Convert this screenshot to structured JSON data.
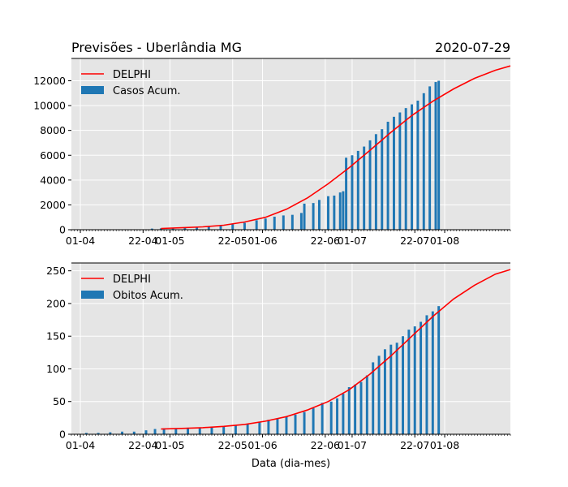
{
  "colors": {
    "bars": "#1f77b4",
    "line": "#ff0000",
    "axes_bg": "#e5e5e5",
    "grid": "#ffffff"
  },
  "chart_data": [
    {
      "type": "bar",
      "title": "Previsões - Uberlândia MG",
      "date_label": "2020-07-29",
      "xlabel": "",
      "ylabel": "",
      "grid": true,
      "legend_position": "top-left",
      "xlim": [
        "2020-03-29",
        "2020-08-23"
      ],
      "ylim": [
        0,
        13800
      ],
      "x_ticks": [
        {
          "date": "2020-04-01",
          "label": "01-04"
        },
        {
          "date": "2020-04-22",
          "label": "22-04"
        },
        {
          "date": "2020-05-01",
          "label": "01-05"
        },
        {
          "date": "2020-05-22",
          "label": "22-05"
        },
        {
          "date": "2020-06-01",
          "label": "01-06"
        },
        {
          "date": "2020-06-22",
          "label": "22-06"
        },
        {
          "date": "2020-07-01",
          "label": "01-07"
        },
        {
          "date": "2020-07-22",
          "label": "22-07"
        },
        {
          "date": "2020-08-01",
          "label": "01-08"
        }
      ],
      "y_ticks": [
        0,
        2000,
        4000,
        6000,
        8000,
        10000,
        12000
      ],
      "series": [
        {
          "name": "Casos Acum.",
          "kind": "bar",
          "points": [
            [
              "2020-04-05",
              5
            ],
            [
              "2020-04-10",
              10
            ],
            [
              "2020-04-15",
              15
            ],
            [
              "2020-04-20",
              20
            ],
            [
              "2020-04-25",
              90
            ],
            [
              "2020-04-28",
              110
            ],
            [
              "2020-05-02",
              120
            ],
            [
              "2020-05-06",
              140
            ],
            [
              "2020-05-10",
              200
            ],
            [
              "2020-05-14",
              260
            ],
            [
              "2020-05-18",
              330
            ],
            [
              "2020-05-22",
              430
            ],
            [
              "2020-05-26",
              560
            ],
            [
              "2020-05-30",
              760
            ],
            [
              "2020-06-02",
              900
            ],
            [
              "2020-06-05",
              1050
            ],
            [
              "2020-06-08",
              1150
            ],
            [
              "2020-06-11",
              1200
            ],
            [
              "2020-06-14",
              1350
            ],
            [
              "2020-06-15",
              2100
            ],
            [
              "2020-06-18",
              2150
            ],
            [
              "2020-06-20",
              2400
            ],
            [
              "2020-06-23",
              2700
            ],
            [
              "2020-06-25",
              2750
            ],
            [
              "2020-06-27",
              3000
            ],
            [
              "2020-06-28",
              3100
            ],
            [
              "2020-06-29",
              5800
            ],
            [
              "2020-07-01",
              6000
            ],
            [
              "2020-07-03",
              6350
            ],
            [
              "2020-07-05",
              6700
            ],
            [
              "2020-07-07",
              7200
            ],
            [
              "2020-07-09",
              7700
            ],
            [
              "2020-07-11",
              8100
            ],
            [
              "2020-07-13",
              8700
            ],
            [
              "2020-07-15",
              9100
            ],
            [
              "2020-07-17",
              9450
            ],
            [
              "2020-07-19",
              9800
            ],
            [
              "2020-07-21",
              10100
            ],
            [
              "2020-07-23",
              10400
            ],
            [
              "2020-07-25",
              11000
            ],
            [
              "2020-07-27",
              11550
            ],
            [
              "2020-07-29",
              11900
            ],
            [
              "2020-07-30",
              12000
            ]
          ]
        },
        {
          "name": "DELPHI",
          "kind": "line",
          "points": [
            [
              "2020-04-28",
              100
            ],
            [
              "2020-05-05",
              160
            ],
            [
              "2020-05-12",
              230
            ],
            [
              "2020-05-19",
              360
            ],
            [
              "2020-05-26",
              620
            ],
            [
              "2020-06-02",
              1000
            ],
            [
              "2020-06-09",
              1650
            ],
            [
              "2020-06-16",
              2550
            ],
            [
              "2020-06-23",
              3700
            ],
            [
              "2020-06-30",
              5000
            ],
            [
              "2020-07-07",
              6400
            ],
            [
              "2020-07-14",
              7850
            ],
            [
              "2020-07-21",
              9200
            ],
            [
              "2020-07-28",
              10350
            ],
            [
              "2020-08-04",
              11350
            ],
            [
              "2020-08-11",
              12200
            ],
            [
              "2020-08-18",
              12850
            ],
            [
              "2020-08-23",
              13200
            ]
          ]
        }
      ]
    },
    {
      "type": "bar",
      "title": "",
      "xlabel": "Data (dia-mes)",
      "ylabel": "",
      "grid": true,
      "legend_position": "top-left",
      "xlim": [
        "2020-03-29",
        "2020-08-23"
      ],
      "ylim": [
        0,
        262
      ],
      "x_ticks": [
        {
          "date": "2020-04-01",
          "label": "01-04"
        },
        {
          "date": "2020-04-22",
          "label": "22-04"
        },
        {
          "date": "2020-05-01",
          "label": "01-05"
        },
        {
          "date": "2020-05-22",
          "label": "22-05"
        },
        {
          "date": "2020-06-01",
          "label": "01-06"
        },
        {
          "date": "2020-06-22",
          "label": "22-06"
        },
        {
          "date": "2020-07-01",
          "label": "01-07"
        },
        {
          "date": "2020-07-22",
          "label": "22-07"
        },
        {
          "date": "2020-08-01",
          "label": "01-08"
        }
      ],
      "y_ticks": [
        0,
        50,
        100,
        150,
        200,
        250
      ],
      "series": [
        {
          "name": "Obitos Acum.",
          "kind": "bar",
          "points": [
            [
              "2020-04-03",
              2
            ],
            [
              "2020-04-07",
              2
            ],
            [
              "2020-04-11",
              3
            ],
            [
              "2020-04-15",
              4
            ],
            [
              "2020-04-19",
              4
            ],
            [
              "2020-04-23",
              6
            ],
            [
              "2020-04-26",
              8
            ],
            [
              "2020-04-29",
              9
            ],
            [
              "2020-05-03",
              9
            ],
            [
              "2020-05-07",
              10
            ],
            [
              "2020-05-11",
              10
            ],
            [
              "2020-05-15",
              11
            ],
            [
              "2020-05-19",
              12
            ],
            [
              "2020-05-23",
              13
            ],
            [
              "2020-05-27",
              15
            ],
            [
              "2020-05-31",
              19
            ],
            [
              "2020-06-03",
              22
            ],
            [
              "2020-06-06",
              24
            ],
            [
              "2020-06-09",
              27
            ],
            [
              "2020-06-12",
              30
            ],
            [
              "2020-06-15",
              34
            ],
            [
              "2020-06-18",
              40
            ],
            [
              "2020-06-21",
              48
            ],
            [
              "2020-06-24",
              50
            ],
            [
              "2020-06-26",
              55
            ],
            [
              "2020-06-28",
              62
            ],
            [
              "2020-06-30",
              72
            ],
            [
              "2020-07-02",
              76
            ],
            [
              "2020-07-04",
              80
            ],
            [
              "2020-07-06",
              90
            ],
            [
              "2020-07-08",
              110
            ],
            [
              "2020-07-10",
              120
            ],
            [
              "2020-07-12",
              130
            ],
            [
              "2020-07-14",
              137
            ],
            [
              "2020-07-16",
              140
            ],
            [
              "2020-07-18",
              150
            ],
            [
              "2020-07-20",
              160
            ],
            [
              "2020-07-22",
              165
            ],
            [
              "2020-07-24",
              172
            ],
            [
              "2020-07-26",
              182
            ],
            [
              "2020-07-28",
              188
            ],
            [
              "2020-07-30",
              196
            ]
          ]
        },
        {
          "name": "DELPHI",
          "kind": "line",
          "points": [
            [
              "2020-04-28",
              8
            ],
            [
              "2020-05-05",
              9
            ],
            [
              "2020-05-12",
              10
            ],
            [
              "2020-05-19",
              12
            ],
            [
              "2020-05-26",
              15
            ],
            [
              "2020-06-02",
              20
            ],
            [
              "2020-06-09",
              27
            ],
            [
              "2020-06-16",
              37
            ],
            [
              "2020-06-23",
              50
            ],
            [
              "2020-06-30",
              68
            ],
            [
              "2020-07-07",
              92
            ],
            [
              "2020-07-14",
              120
            ],
            [
              "2020-07-21",
              150
            ],
            [
              "2020-07-28",
              180
            ],
            [
              "2020-08-04",
              207
            ],
            [
              "2020-08-11",
              228
            ],
            [
              "2020-08-18",
              245
            ],
            [
              "2020-08-23",
              252
            ]
          ]
        }
      ]
    }
  ]
}
